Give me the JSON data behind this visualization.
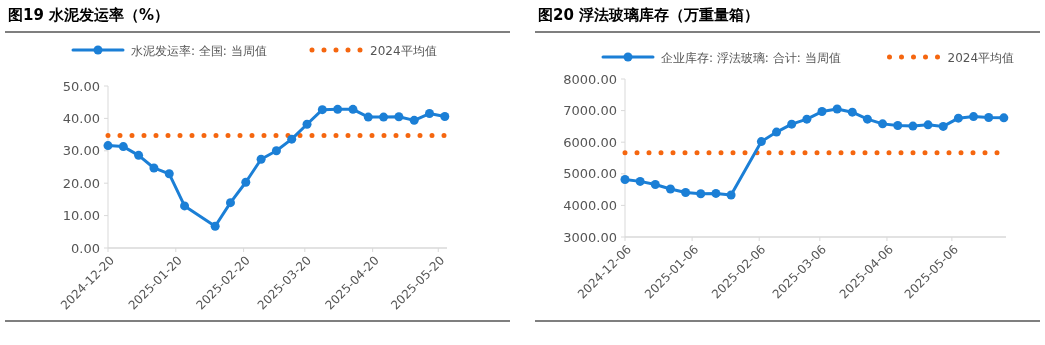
{
  "chart_data": [
    {
      "type": "line",
      "title": "图19 水泥发运率（%）",
      "legend": "top",
      "xlim": [
        "2024-12-20",
        "2025-05-24"
      ],
      "xticks": [
        {
          "value": "2024-12-20",
          "label": "2024-12-20"
        },
        {
          "value": "2025-01-20",
          "label": "2025-01-20"
        },
        {
          "value": "2025-02-20",
          "label": "2025-02-20"
        },
        {
          "value": "2025-03-20",
          "label": "2025-03-20"
        },
        {
          "value": "2025-04-20",
          "label": "2025-04-20"
        },
        {
          "value": "2025-05-20",
          "label": "2025-05-20"
        }
      ],
      "ylim": [
        0,
        50
      ],
      "yticks": [
        {
          "value": 0,
          "label": "0.00"
        },
        {
          "value": 10,
          "label": "10.00"
        },
        {
          "value": 20,
          "label": "20.00"
        },
        {
          "value": 30,
          "label": "30.00"
        },
        {
          "value": 40,
          "label": "40.00"
        },
        {
          "value": 50,
          "label": "50.00"
        }
      ],
      "series": [
        {
          "name": "水泥发运率: 全国: 当周值",
          "color": "#1b7fd6",
          "marker": "circle",
          "line_style": "solid",
          "x": [
            "2024-12-20",
            "2024-12-27",
            "2025-01-03",
            "2025-01-10",
            "2025-01-17",
            "2025-01-24",
            "2025-02-07",
            "2025-02-14",
            "2025-02-21",
            "2025-02-28",
            "2025-03-07",
            "2025-03-14",
            "2025-03-21",
            "2025-03-28",
            "2025-04-04",
            "2025-04-11",
            "2025-04-18",
            "2025-04-25",
            "2025-05-02",
            "2025-05-09",
            "2025-05-16",
            "2025-05-23"
          ],
          "values": [
            31.6,
            31.3,
            28.6,
            24.7,
            22.9,
            13.0,
            6.7,
            14.0,
            20.3,
            27.4,
            30.0,
            33.6,
            38.2,
            42.7,
            42.8,
            42.8,
            40.4,
            40.4,
            40.5,
            39.4,
            41.5,
            40.6
          ]
        },
        {
          "name": "2024平均值",
          "color": "#f5660f",
          "marker": "none",
          "line_style": "dotted",
          "x": [
            "2024-12-20",
            "2025-05-23"
          ],
          "values": [
            34.7,
            34.7
          ]
        }
      ]
    },
    {
      "type": "line",
      "title": "图20 浮法玻璃库存（万重量箱）",
      "legend": "top",
      "xlim": [
        "2024-12-06",
        "2025-05-31"
      ],
      "xticks": [
        {
          "value": "2024-12-06",
          "label": "2024-12-06"
        },
        {
          "value": "2025-01-06",
          "label": "2025-01-06"
        },
        {
          "value": "2025-02-06",
          "label": "2025-02-06"
        },
        {
          "value": "2025-03-06",
          "label": "2025-03-06"
        },
        {
          "value": "2025-04-06",
          "label": "2025-04-06"
        },
        {
          "value": "2025-05-06",
          "label": "2025-05-06"
        }
      ],
      "ylim": [
        3000,
        8000
      ],
      "yticks": [
        {
          "value": 3000,
          "label": "3000.00"
        },
        {
          "value": 4000,
          "label": "4000.00"
        },
        {
          "value": 5000,
          "label": "5000.00"
        },
        {
          "value": 6000,
          "label": "6000.00"
        },
        {
          "value": 7000,
          "label": "7000.00"
        },
        {
          "value": 8000,
          "label": "8000.00"
        }
      ],
      "series": [
        {
          "name": "企业库存: 浮法玻璃: 合计: 当周值",
          "color": "#1b7fd6",
          "marker": "circle",
          "line_style": "solid",
          "x": [
            "2024-12-06",
            "2024-12-13",
            "2024-12-20",
            "2024-12-27",
            "2025-01-03",
            "2025-01-10",
            "2025-01-17",
            "2025-01-24",
            "2025-02-07",
            "2025-02-14",
            "2025-02-21",
            "2025-02-28",
            "2025-03-07",
            "2025-03-14",
            "2025-03-21",
            "2025-03-28",
            "2025-04-04",
            "2025-04-11",
            "2025-04-18",
            "2025-04-25",
            "2025-05-02",
            "2025-05-09",
            "2025-05-16",
            "2025-05-23",
            "2025-05-30"
          ],
          "values": [
            4820,
            4760,
            4660,
            4520,
            4410,
            4370,
            4380,
            4330,
            6020,
            6320,
            6570,
            6730,
            6970,
            7050,
            6950,
            6730,
            6580,
            6530,
            6510,
            6550,
            6500,
            6760,
            6810,
            6780,
            6770
          ]
        },
        {
          "name": "2024平均值",
          "color": "#f5660f",
          "marker": "none",
          "line_style": "dotted",
          "x": [
            "2024-12-06",
            "2025-05-30"
          ],
          "values": [
            5670,
            5670
          ]
        }
      ]
    }
  ]
}
